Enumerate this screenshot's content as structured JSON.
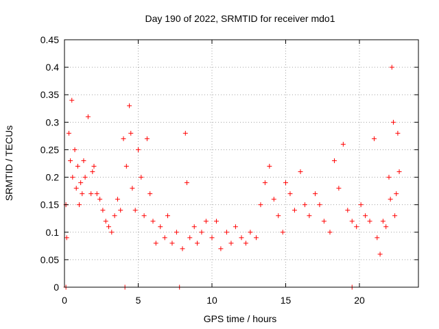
{
  "chart_data": {
    "type": "scatter",
    "title": "Day 190 of 2022, SRMTID for receiver mdo1",
    "xlabel": "GPS time / hours",
    "ylabel": "SRMTID / TECUs",
    "xlim": [
      0,
      24
    ],
    "ylim": [
      0,
      0.45
    ],
    "x_ticks": [
      0,
      5,
      10,
      15,
      20
    ],
    "x_tick_labels": [
      "0",
      "5",
      "10",
      "15",
      "20"
    ],
    "y_ticks": [
      0,
      0.05,
      0.1,
      0.15,
      0.2,
      0.25,
      0.3,
      0.35,
      0.4,
      0.45
    ],
    "y_tick_labels": [
      "0",
      "0.05",
      "0.1",
      "0.15",
      "0.2",
      "0.25",
      "0.3",
      "0.35",
      "0.4",
      "0.45"
    ],
    "grid": true,
    "series": [
      {
        "name": "SRMTID",
        "color": "#ff0000",
        "marker": "+",
        "x": [
          0.1,
          0.15,
          0.3,
          0.4,
          0.5,
          0.55,
          0.7,
          0.8,
          0.9,
          1.0,
          1.1,
          1.2,
          1.3,
          1.4,
          1.6,
          1.8,
          1.9,
          2.0,
          2.2,
          2.4,
          2.6,
          2.8,
          3.0,
          3.2,
          3.4,
          3.6,
          3.8,
          4.0,
          4.2,
          4.4,
          4.5,
          4.6,
          4.8,
          5.0,
          5.2,
          5.4,
          5.6,
          5.8,
          6.0,
          6.2,
          6.5,
          6.8,
          7.0,
          7.3,
          7.6,
          8.0,
          8.2,
          8.3,
          8.5,
          8.8,
          9.0,
          9.3,
          9.6,
          10.0,
          10.3,
          10.6,
          11.0,
          11.3,
          11.6,
          12.0,
          12.3,
          12.6,
          13.0,
          13.3,
          13.6,
          13.9,
          14.2,
          14.5,
          14.8,
          15.0,
          15.3,
          15.6,
          16.0,
          16.3,
          16.6,
          17.0,
          17.3,
          17.6,
          18.0,
          18.3,
          18.6,
          18.9,
          19.2,
          19.5,
          19.8,
          20.1,
          20.4,
          20.7,
          21.0,
          21.2,
          21.4,
          21.6,
          21.8,
          22.0,
          22.1,
          22.2,
          22.3,
          22.4,
          22.5,
          22.6,
          22.7,
          0.1,
          4.1,
          7.8,
          19.5
        ],
        "y": [
          0.15,
          0.09,
          0.28,
          0.23,
          0.34,
          0.2,
          0.25,
          0.18,
          0.22,
          0.15,
          0.19,
          0.17,
          0.23,
          0.2,
          0.31,
          0.17,
          0.21,
          0.22,
          0.17,
          0.16,
          0.14,
          0.12,
          0.11,
          0.1,
          0.13,
          0.16,
          0.14,
          0.27,
          0.22,
          0.33,
          0.28,
          0.18,
          0.14,
          0.25,
          0.2,
          0.13,
          0.27,
          0.17,
          0.12,
          0.08,
          0.11,
          0.09,
          0.13,
          0.08,
          0.1,
          0.07,
          0.28,
          0.19,
          0.09,
          0.11,
          0.08,
          0.1,
          0.12,
          0.09,
          0.12,
          0.07,
          0.1,
          0.08,
          0.11,
          0.09,
          0.08,
          0.1,
          0.09,
          0.15,
          0.19,
          0.22,
          0.16,
          0.13,
          0.1,
          0.19,
          0.17,
          0.14,
          0.21,
          0.15,
          0.13,
          0.17,
          0.15,
          0.12,
          0.1,
          0.23,
          0.18,
          0.26,
          0.14,
          0.12,
          0.11,
          0.15,
          0.13,
          0.12,
          0.27,
          0.09,
          0.06,
          0.12,
          0.11,
          0.2,
          0.16,
          0.4,
          0.3,
          0.13,
          0.17,
          0.28,
          0.21,
          0.0,
          0.0,
          0.0,
          0.0
        ]
      }
    ]
  }
}
